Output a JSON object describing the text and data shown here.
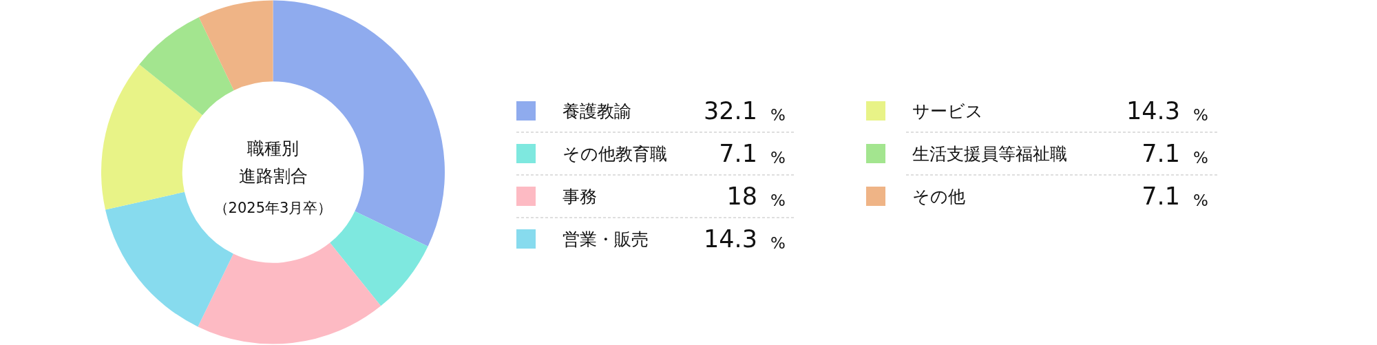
{
  "chart_data": {
    "type": "donut",
    "title": "職種別進路割合",
    "subtitle": "（2025年3月卒）",
    "categories": [
      "養護教諭",
      "その他教育職",
      "事務",
      "営業・販売",
      "サービス",
      "生活支援員等福祉職",
      "その他"
    ],
    "values": [
      32.1,
      7.1,
      18,
      14.3,
      14.3,
      7.1,
      7.1
    ],
    "value_labels": [
      "32.1 %",
      "7.1 %",
      "18 %",
      "14.3 %",
      "14.3 %",
      "7.1 %",
      "7.1 %"
    ],
    "colors": [
      "#8fabee",
      "#7ee8df",
      "#fdbac3",
      "#87dbee",
      "#e8f387",
      "#a3e58f",
      "#efb486"
    ],
    "legend": "right"
  }
}
